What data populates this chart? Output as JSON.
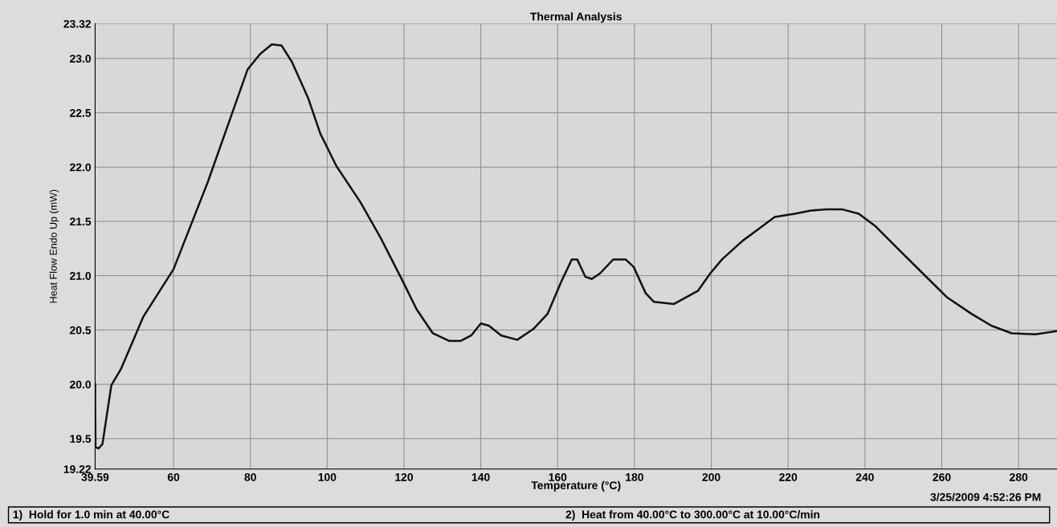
{
  "chart_data": {
    "type": "line",
    "title": "Thermal Analysis",
    "xlabel": "Temperature (°C)",
    "ylabel": "Heat Flow Endo Up (mW)",
    "xlim": [
      39.59,
      290
    ],
    "ylim": [
      19.22,
      23.32
    ],
    "xticks": [
      39.59,
      60,
      80,
      100,
      120,
      140,
      160,
      180,
      200,
      220,
      240,
      260,
      280
    ],
    "yticks": [
      19.22,
      19.5,
      {
        "value": 20.0,
        "label": "20.0"
      },
      20.5,
      {
        "value": 21.0,
        "label": "21.0"
      },
      21.5,
      {
        "value": 22.0,
        "label": "22.0"
      },
      22.5,
      {
        "value": 23.0,
        "label": "23.0"
      },
      23.32
    ],
    "grid": true,
    "marker": "none",
    "line_style": "solid",
    "series": [
      {
        "color": "#111111",
        "x": [
          39.6,
          39.6,
          39.7,
          40.5,
          41.5,
          43.8,
          46.3,
          52.1,
          60,
          68.9,
          75.2,
          79.3,
          82.5,
          85.6,
          88.1,
          90.8,
          95,
          98.2,
          102.4,
          108.6,
          113.9,
          119.1,
          123.3,
          127.5,
          131.7,
          134.8,
          137.5,
          140,
          142.1,
          145.3,
          149.5,
          153.7,
          157.4,
          161,
          163.7,
          165.1,
          167.2,
          168.9,
          171,
          174.5,
          177.7,
          179.8,
          182.9,
          185,
          190.3,
          194.4,
          196.5,
          199.7,
          202.8,
          208.1,
          212.3,
          216.5,
          221.7,
          225.9,
          230,
          234.2,
          238.4,
          242.6,
          248.8,
          255.1,
          261.4,
          267.7,
          272.9,
          278.2,
          284.4,
          289.9
        ],
        "values": [
          20.0,
          19.8,
          19.42,
          19.41,
          19.45,
          19.99,
          20.14,
          20.62,
          21.06,
          21.86,
          22.49,
          22.9,
          23.04,
          23.13,
          23.12,
          22.97,
          22.64,
          22.31,
          22.01,
          21.68,
          21.35,
          20.99,
          20.69,
          20.47,
          20.4,
          20.4,
          20.45,
          20.56,
          20.54,
          20.45,
          20.41,
          20.51,
          20.65,
          20.95,
          21.15,
          21.15,
          20.99,
          20.97,
          21.02,
          21.15,
          21.15,
          21.08,
          20.84,
          20.76,
          20.74,
          20.82,
          20.86,
          21.02,
          21.15,
          21.32,
          21.43,
          21.54,
          21.57,
          21.6,
          21.61,
          21.61,
          21.57,
          21.46,
          21.24,
          21.02,
          20.8,
          20.65,
          20.54,
          20.47,
          20.46,
          20.49
        ]
      }
    ],
    "annotations": [
      "1)  Hold for 1.0 min at 40.00°C",
      "2)  Heat from 40.00°C to 300.00°C at 10.00°C/min",
      "3/25/2009 4:52:26 PM"
    ]
  }
}
